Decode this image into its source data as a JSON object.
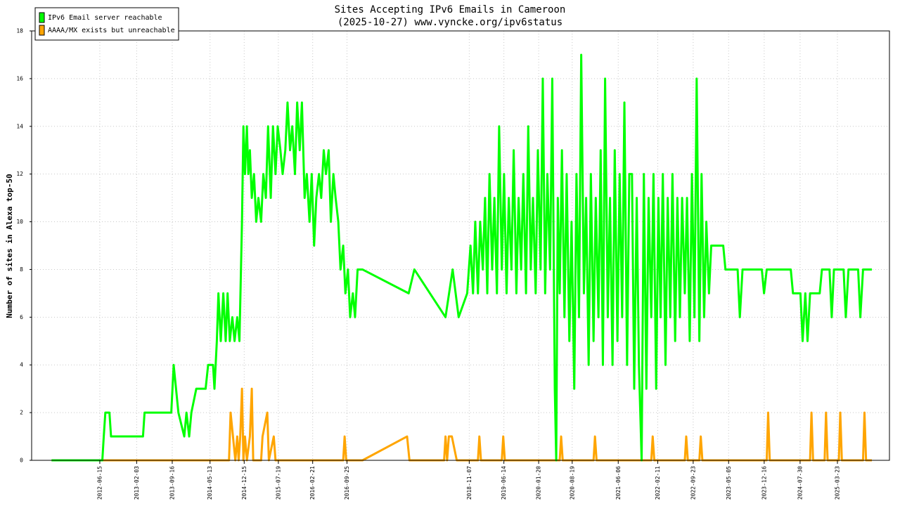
{
  "chart_data": {
    "type": "line",
    "title": "Sites Accepting IPv6 Emails in Cameroon",
    "subtitle": "(2025-10-27) www.vyncke.org/ipv6status",
    "y_label": "Number of sites in Alexa top-50",
    "legend": "upper left",
    "grid": true,
    "xlim": [
      "2011-04-11",
      "2026-02-15"
    ],
    "ylim": [
      0,
      18
    ],
    "yticks": [
      0,
      2,
      4,
      6,
      8,
      10,
      12,
      14,
      16,
      18
    ],
    "xticks": [
      "2012-06-15",
      "2013-02-03",
      "2013-09-16",
      "2014-05-13",
      "2014-12-15",
      "2015-07-19",
      "2016-02-21",
      "2016-09-25",
      "2018-11-07",
      "2019-06-14",
      "2020-01-20",
      "2020-08-19",
      "2021-06-06",
      "2022-02-11",
      "2022-09-23",
      "2023-05-05",
      "2023-12-16",
      "2024-07-30",
      "2025-03-23"
    ],
    "series": [
      {
        "name": "IPv6 Email server reachable",
        "color": "#00ff00",
        "x": [
          "2011-08-15",
          "2012-07-01",
          "2012-07-10",
          "2012-07-20",
          "2012-08-15",
          "2012-08-25",
          "2013-03-15",
          "2013-03-25",
          "2013-09-10",
          "2013-09-25",
          "2013-10-10",
          "2013-10-25",
          "2013-12-01",
          "2013-12-15",
          "2014-01-01",
          "2014-01-15",
          "2014-02-15",
          "2014-04-15",
          "2014-05-01",
          "2014-06-01",
          "2014-06-10",
          "2014-06-25",
          "2014-07-05",
          "2014-07-20",
          "2014-08-05",
          "2014-08-20",
          "2014-09-01",
          "2014-09-15",
          "2014-10-01",
          "2014-10-15",
          "2014-11-01",
          "2014-11-15",
          "2014-12-01",
          "2014-12-10",
          "2014-12-20",
          "2015-01-01",
          "2015-01-10",
          "2015-01-20",
          "2015-02-01",
          "2015-02-15",
          "2015-03-01",
          "2015-03-15",
          "2015-04-01",
          "2015-04-15",
          "2015-05-01",
          "2015-05-15",
          "2015-06-01",
          "2015-06-15",
          "2015-07-01",
          "2015-07-15",
          "2015-08-01",
          "2015-08-15",
          "2015-09-01",
          "2015-09-15",
          "2015-10-01",
          "2015-10-15",
          "2015-11-01",
          "2015-11-15",
          "2015-12-01",
          "2015-12-15",
          "2016-01-01",
          "2016-01-15",
          "2016-02-01",
          "2016-02-15",
          "2016-03-01",
          "2016-03-15",
          "2016-04-01",
          "2016-04-15",
          "2016-05-01",
          "2016-05-15",
          "2016-06-01",
          "2016-06-15",
          "2016-07-01",
          "2016-07-15",
          "2016-08-01",
          "2016-08-15",
          "2016-09-01",
          "2016-09-15",
          "2016-10-01",
          "2016-10-15",
          "2016-11-01",
          "2016-11-15",
          "2016-12-01",
          "2017-01-01",
          "2017-10-20",
          "2017-11-25",
          "2018-06-10",
          "2018-07-25",
          "2018-09-01",
          "2018-10-25",
          "2018-11-15",
          "2018-12-01",
          "2018-12-15",
          "2019-01-01",
          "2019-01-15",
          "2019-02-01",
          "2019-02-15",
          "2019-03-01",
          "2019-03-15",
          "2019-04-01",
          "2019-04-15",
          "2019-05-01",
          "2019-05-15",
          "2019-06-01",
          "2019-06-15",
          "2019-07-01",
          "2019-07-15",
          "2019-08-01",
          "2019-08-15",
          "2019-09-01",
          "2019-09-15",
          "2019-10-01",
          "2019-10-15",
          "2019-11-01",
          "2019-11-15",
          "2019-12-01",
          "2019-12-15",
          "2020-01-01",
          "2020-01-15",
          "2020-02-01",
          "2020-02-15",
          "2020-03-01",
          "2020-03-15",
          "2020-04-01",
          "2020-04-15",
          "2020-05-01",
          "2020-05-10",
          "2020-05-20",
          "2020-06-01",
          "2020-06-15",
          "2020-07-01",
          "2020-07-15",
          "2020-08-01",
          "2020-08-15",
          "2020-09-01",
          "2020-09-15",
          "2020-10-01",
          "2020-10-15",
          "2020-11-01",
          "2020-11-15",
          "2020-12-01",
          "2020-12-15",
          "2021-01-01",
          "2021-01-15",
          "2021-02-01",
          "2021-02-15",
          "2021-03-01",
          "2021-03-15",
          "2021-04-01",
          "2021-04-15",
          "2021-05-01",
          "2021-05-15",
          "2021-06-01",
          "2021-06-15",
          "2021-07-01",
          "2021-07-15",
          "2021-08-01",
          "2021-08-15",
          "2021-09-01",
          "2021-09-15",
          "2021-10-01",
          "2021-10-15",
          "2021-11-01",
          "2021-11-15",
          "2021-12-01",
          "2021-12-15",
          "2022-01-01",
          "2022-01-15",
          "2022-02-01",
          "2022-02-15",
          "2022-03-01",
          "2022-03-15",
          "2022-04-01",
          "2022-04-15",
          "2022-05-01",
          "2022-05-15",
          "2022-06-01",
          "2022-06-15",
          "2022-07-01",
          "2022-07-15",
          "2022-08-01",
          "2022-08-15",
          "2022-09-01",
          "2022-09-15",
          "2022-10-01",
          "2022-10-15",
          "2022-11-01",
          "2022-11-15",
          "2022-12-01",
          "2022-12-15",
          "2023-01-01",
          "2023-01-15",
          "2023-04-01",
          "2023-04-15",
          "2023-07-01",
          "2023-07-15",
          "2023-08-01",
          "2023-12-01",
          "2023-12-15",
          "2024-01-01",
          "2024-06-01",
          "2024-06-15",
          "2024-08-01",
          "2024-08-15",
          "2024-09-01",
          "2024-09-15",
          "2024-10-01",
          "2024-12-01",
          "2024-12-15",
          "2025-02-01",
          "2025-02-15",
          "2025-03-01",
          "2025-05-01",
          "2025-05-15",
          "2025-06-01",
          "2025-08-01",
          "2025-08-15",
          "2025-09-01",
          "2025-10-27"
        ],
        "values": [
          0,
          0,
          1,
          2,
          2,
          1,
          1,
          2,
          2,
          4,
          3,
          2,
          1,
          2,
          1,
          2,
          3,
          3,
          4,
          4,
          3,
          5,
          7,
          5,
          7,
          5,
          7,
          5,
          6,
          5,
          6,
          5,
          10,
          14,
          12,
          14,
          12,
          13,
          11,
          12,
          10,
          11,
          10,
          12,
          11,
          14,
          11,
          14,
          12,
          14,
          13,
          12,
          13,
          15,
          13,
          14,
          12,
          15,
          13,
          15,
          11,
          12,
          10,
          12,
          9,
          11,
          12,
          11,
          13,
          12,
          13,
          10,
          12,
          11,
          10,
          8,
          9,
          7,
          8,
          6,
          7,
          6,
          8,
          8,
          7,
          8,
          6,
          8,
          6,
          7,
          9,
          7,
          10,
          7,
          10,
          8,
          11,
          7,
          12,
          8,
          11,
          7,
          14,
          8,
          12,
          7,
          11,
          8,
          13,
          7,
          11,
          8,
          12,
          7,
          14,
          8,
          11,
          7,
          13,
          8,
          16,
          7,
          12,
          8,
          16,
          3,
          0,
          11,
          7,
          13,
          6,
          12,
          5,
          10,
          3,
          12,
          6,
          17,
          7,
          11,
          4,
          12,
          5,
          11,
          6,
          13,
          4,
          16,
          6,
          11,
          4,
          13,
          5,
          12,
          6,
          15,
          4,
          12,
          12,
          3,
          11,
          4,
          0,
          12,
          3,
          11,
          6,
          12,
          3,
          11,
          6,
          12,
          4,
          11,
          6,
          12,
          5,
          11,
          6,
          11,
          7,
          11,
          5,
          12,
          6,
          16,
          5,
          12,
          6,
          10,
          7,
          9,
          9,
          8,
          8,
          6,
          8,
          8,
          7,
          8,
          8,
          7,
          7,
          5,
          7,
          5,
          7,
          7,
          8,
          8,
          6,
          8,
          8,
          6,
          8,
          8,
          6,
          8,
          8
        ]
      },
      {
        "name": "AAAA/MX exists but unreachable",
        "color": "#ffa500",
        "x": [
          "2011-08-15",
          "2014-09-10",
          "2014-09-20",
          "2014-10-05",
          "2014-10-20",
          "2014-11-01",
          "2014-11-10",
          "2014-11-20",
          "2014-12-01",
          "2014-12-10",
          "2014-12-20",
          "2015-01-01",
          "2015-01-20",
          "2015-02-01",
          "2015-02-10",
          "2015-04-01",
          "2015-04-10",
          "2015-05-10",
          "2015-05-20",
          "2015-06-20",
          "2015-07-01",
          "2016-09-01",
          "2016-09-10",
          "2016-09-20",
          "2017-01-01",
          "2017-10-10",
          "2017-10-25",
          "2018-06-01",
          "2018-06-10",
          "2018-06-20",
          "2018-07-01",
          "2018-07-20",
          "2018-08-20",
          "2019-01-01",
          "2019-01-10",
          "2019-01-20",
          "2019-06-01",
          "2019-06-10",
          "2019-06-20",
          "2020-06-01",
          "2020-06-10",
          "2020-06-20",
          "2021-01-01",
          "2021-01-10",
          "2021-01-20",
          "2022-01-01",
          "2022-01-10",
          "2022-01-20",
          "2022-08-01",
          "2022-08-10",
          "2022-08-20",
          "2022-11-01",
          "2022-11-10",
          "2022-11-20",
          "2024-01-01",
          "2024-01-10",
          "2024-01-20",
          "2024-10-01",
          "2024-10-10",
          "2024-10-20",
          "2025-01-01",
          "2025-01-10",
          "2025-01-20",
          "2025-04-01",
          "2025-04-10",
          "2025-04-20",
          "2025-09-01",
          "2025-09-10",
          "2025-09-20",
          "2025-10-27"
        ],
        "values": [
          0,
          0,
          2,
          1,
          0,
          1,
          0,
          1,
          3,
          0,
          1,
          0,
          1,
          3,
          0,
          0,
          1,
          2,
          0,
          1,
          0,
          0,
          1,
          0,
          0,
          1,
          0,
          0,
          1,
          0,
          1,
          1,
          0,
          0,
          1,
          0,
          0,
          1,
          0,
          0,
          1,
          0,
          0,
          1,
          0,
          0,
          1,
          0,
          0,
          1,
          0,
          0,
          1,
          0,
          0,
          2,
          0,
          0,
          2,
          0,
          0,
          2,
          0,
          0,
          2,
          0,
          0,
          2,
          0,
          0
        ]
      }
    ]
  }
}
